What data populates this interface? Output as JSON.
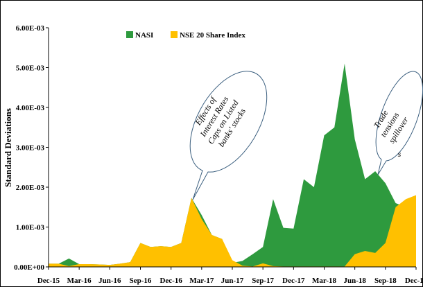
{
  "chart_data": {
    "type": "area",
    "title": "",
    "xlabel": "",
    "ylabel": "Standard Deviations",
    "ylim": [
      0,
      0.006
    ],
    "yticks": [
      "0.00E+00",
      "1.00E-03",
      "2.00E-03",
      "3.00E-03",
      "4.00E-03",
      "5.00E-03",
      "6.00E-03"
    ],
    "xtick_labels": [
      "Dec-15",
      "Mar-16",
      "Jun-16",
      "Sep-16",
      "Dec-16",
      "Mar-17",
      "Jun-17",
      "Sep-17",
      "Dec-17",
      "Mar-18",
      "Jun-18",
      "Sep-18",
      "Dec-18"
    ],
    "x": [
      "Dec-15",
      "Jan-16",
      "Feb-16",
      "Mar-16",
      "Apr-16",
      "May-16",
      "Jun-16",
      "Jul-16",
      "Aug-16",
      "Sep-16",
      "Oct-16",
      "Nov-16",
      "Dec-16",
      "Jan-17",
      "Feb-17",
      "Mar-17",
      "Apr-17",
      "May-17",
      "Jun-17",
      "Jul-17",
      "Aug-17",
      "Sep-17",
      "Oct-17",
      "Nov-17",
      "Dec-17",
      "Jan-18",
      "Feb-18",
      "Mar-18",
      "Apr-18",
      "May-18",
      "Jun-18",
      "Jul-18",
      "Aug-18",
      "Sep-18",
      "Oct-18",
      "Nov-18",
      "Dec-18"
    ],
    "grid": false,
    "legend_position": "top",
    "series": [
      {
        "name": "NASI",
        "color": "#2e9a3e",
        "values": [
          8e-05,
          8e-05,
          0.00021,
          7e-05,
          7e-05,
          6e-05,
          5e-05,
          8e-05,
          0.00012,
          0.0006,
          0.0005,
          0.00052,
          0.0005,
          0.0006,
          0.00173,
          0.0013,
          0.0008,
          0.0007,
          0.0001,
          0.00015,
          0.00032,
          0.0005,
          0.0017,
          0.00098,
          0.00096,
          0.0022,
          0.002,
          0.0033,
          0.0035,
          0.0051,
          0.0032,
          0.0022,
          0.0024,
          0.0021,
          0.0016,
          0.0015,
          0.0017
        ]
      },
      {
        "name": "NSE 20 Share Index",
        "color": "#ffc000",
        "values": [
          8e-05,
          8e-05,
          2e-05,
          7e-05,
          7e-05,
          6e-05,
          5e-05,
          8e-05,
          0.00012,
          0.0006,
          0.0005,
          0.00052,
          0.0005,
          0.0006,
          0.00173,
          0.0012,
          0.0008,
          0.0007,
          0.00017,
          3e-05,
          1e-05,
          9e-05,
          2e-05,
          1e-05,
          1e-05,
          1e-05,
          1e-05,
          1e-05,
          1e-05,
          1e-05,
          0.00032,
          0.0004,
          0.00035,
          0.0006,
          0.0015,
          0.0017,
          0.0018
        ]
      }
    ],
    "annotations": [
      {
        "text_lines": [
          "Effects of",
          "Interest Rates",
          "Caps on Listed",
          "banks' stocks"
        ],
        "points_to": "Mar-17"
      },
      {
        "text_lines": [
          "Trade",
          "tensions",
          "spillover",
          "s"
        ],
        "points_to": "Sep-18"
      }
    ]
  }
}
